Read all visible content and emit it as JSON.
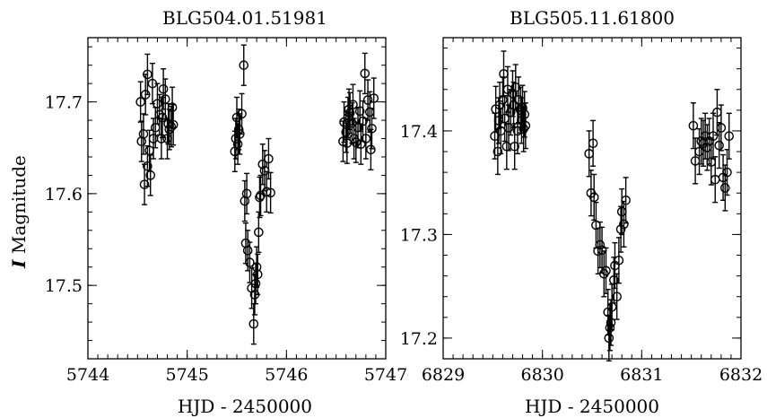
{
  "chart_data": [
    {
      "type": "scatter",
      "title": "BLG504.01.51981",
      "xlabel": "HJD - 2450000",
      "ylabel_italic": "I",
      "ylabel": "Magnitude",
      "xlim": [
        5744,
        5747
      ],
      "ylim": [
        17.77,
        17.42
      ],
      "y_inverted": true,
      "xticks": [
        5744,
        5745,
        5746,
        5747
      ],
      "yticks": [
        17.5,
        17.6,
        17.7
      ],
      "xtick_labels": [
        "5744",
        "5745",
        "5746",
        "5747"
      ],
      "ytick_labels": [
        "17.5",
        "17.6",
        "17.7"
      ],
      "error_bar": 0.022,
      "points": [
        [
          5744.53,
          17.7
        ],
        [
          5744.54,
          17.657
        ],
        [
          5744.56,
          17.665
        ],
        [
          5744.57,
          17.61
        ],
        [
          5744.58,
          17.708
        ],
        [
          5744.6,
          17.63
        ],
        [
          5744.6,
          17.73
        ],
        [
          5744.62,
          17.647
        ],
        [
          5744.63,
          17.62
        ],
        [
          5744.65,
          17.72
        ],
        [
          5744.66,
          17.66
        ],
        [
          5744.68,
          17.672
        ],
        [
          5744.7,
          17.698
        ],
        [
          5744.72,
          17.686
        ],
        [
          5744.74,
          17.66
        ],
        [
          5744.75,
          17.683
        ],
        [
          5744.76,
          17.714
        ],
        [
          5744.78,
          17.703
        ],
        [
          5744.8,
          17.66
        ],
        [
          5744.81,
          17.676
        ],
        [
          5744.82,
          17.67
        ],
        [
          5744.84,
          17.673
        ],
        [
          5744.85,
          17.694
        ],
        [
          5744.86,
          17.675
        ],
        [
          5745.48,
          17.646
        ],
        [
          5745.49,
          17.66
        ],
        [
          5745.5,
          17.683
        ],
        [
          5745.51,
          17.654
        ],
        [
          5745.52,
          17.67
        ],
        [
          5745.53,
          17.665
        ],
        [
          5745.55,
          17.687
        ],
        [
          5745.57,
          17.74
        ],
        [
          5745.58,
          17.592
        ],
        [
          5745.59,
          17.546
        ],
        [
          5745.6,
          17.6
        ],
        [
          5745.61,
          17.538
        ],
        [
          5745.63,
          17.525
        ],
        [
          5745.65,
          17.497
        ],
        [
          5745.67,
          17.458
        ],
        [
          5745.68,
          17.49
        ],
        [
          5745.69,
          17.502
        ],
        [
          5745.7,
          17.52
        ],
        [
          5745.71,
          17.512
        ],
        [
          5745.72,
          17.558
        ],
        [
          5745.73,
          17.596
        ],
        [
          5745.74,
          17.598
        ],
        [
          5745.76,
          17.632
        ],
        [
          5745.78,
          17.625
        ],
        [
          5745.8,
          17.602
        ],
        [
          5745.82,
          17.638
        ],
        [
          5745.84,
          17.601
        ],
        [
          5746.57,
          17.657
        ],
        [
          5746.58,
          17.678
        ],
        [
          5746.6,
          17.667
        ],
        [
          5746.61,
          17.655
        ],
        [
          5746.62,
          17.683
        ],
        [
          5746.63,
          17.692
        ],
        [
          5746.64,
          17.688
        ],
        [
          5746.66,
          17.677
        ],
        [
          5746.67,
          17.697
        ],
        [
          5746.68,
          17.66
        ],
        [
          5746.7,
          17.656
        ],
        [
          5746.72,
          17.672
        ],
        [
          5746.74,
          17.69
        ],
        [
          5746.75,
          17.654
        ],
        [
          5746.77,
          17.679
        ],
        [
          5746.79,
          17.731
        ],
        [
          5746.8,
          17.66
        ],
        [
          5746.82,
          17.702
        ],
        [
          5746.84,
          17.689
        ],
        [
          5746.85,
          17.648
        ],
        [
          5746.86,
          17.671
        ],
        [
          5746.88,
          17.704
        ]
      ]
    },
    {
      "type": "scatter",
      "title": "BLG505.11.61800",
      "xlabel": "HJD - 2450000",
      "xlim": [
        6829,
        6832
      ],
      "ylim": [
        17.49,
        17.18
      ],
      "y_inverted": true,
      "xticks": [
        6829,
        6830,
        6831,
        6832
      ],
      "yticks": [
        17.2,
        17.3,
        17.4
      ],
      "xtick_labels": [
        "6829",
        "6830",
        "6831",
        "6832"
      ],
      "ytick_labels": [
        "17.2",
        "17.3",
        "17.4"
      ],
      "error_bar": 0.022,
      "points": [
        [
          6829.52,
          17.395
        ],
        [
          6829.53,
          17.421
        ],
        [
          6829.55,
          17.38
        ],
        [
          6829.56,
          17.41
        ],
        [
          6829.57,
          17.425
        ],
        [
          6829.58,
          17.4
        ],
        [
          6829.6,
          17.43
        ],
        [
          6829.61,
          17.455
        ],
        [
          6829.62,
          17.412
        ],
        [
          6829.64,
          17.385
        ],
        [
          6829.65,
          17.44
        ],
        [
          6829.66,
          17.403
        ],
        [
          6829.68,
          17.418
        ],
        [
          6829.7,
          17.436
        ],
        [
          6829.71,
          17.425
        ],
        [
          6829.72,
          17.385
        ],
        [
          6829.73,
          17.442
        ],
        [
          6829.75,
          17.4
        ],
        [
          6829.76,
          17.43
        ],
        [
          6829.78,
          17.42
        ],
        [
          6829.79,
          17.41
        ],
        [
          6829.8,
          17.422
        ],
        [
          6829.81,
          17.402
        ],
        [
          6829.82,
          17.416
        ],
        [
          6829.83,
          17.405
        ],
        [
          6830.47,
          17.378
        ],
        [
          6830.49,
          17.34
        ],
        [
          6830.51,
          17.388
        ],
        [
          6830.52,
          17.336
        ],
        [
          6830.54,
          17.309
        ],
        [
          6830.56,
          17.284
        ],
        [
          6830.58,
          17.29
        ],
        [
          6830.6,
          17.285
        ],
        [
          6830.62,
          17.262
        ],
        [
          6830.64,
          17.265
        ],
        [
          6830.66,
          17.225
        ],
        [
          6830.67,
          17.2
        ],
        [
          6830.68,
          17.21
        ],
        [
          6830.69,
          17.215
        ],
        [
          6830.7,
          17.23
        ],
        [
          6830.72,
          17.256
        ],
        [
          6830.73,
          17.27
        ],
        [
          6830.75,
          17.24
        ],
        [
          6830.77,
          17.275
        ],
        [
          6830.79,
          17.305
        ],
        [
          6830.8,
          17.322
        ],
        [
          6830.82,
          17.31
        ],
        [
          6830.84,
          17.333
        ],
        [
          6831.52,
          17.405
        ],
        [
          6831.54,
          17.371
        ],
        [
          6831.58,
          17.38
        ],
        [
          6831.6,
          17.39
        ],
        [
          6831.62,
          17.388
        ],
        [
          6831.64,
          17.395
        ],
        [
          6831.66,
          17.384
        ],
        [
          6831.68,
          17.39
        ],
        [
          6831.7,
          17.37
        ],
        [
          6831.72,
          17.395
        ],
        [
          6831.74,
          17.353
        ],
        [
          6831.76,
          17.418
        ],
        [
          6831.78,
          17.386
        ],
        [
          6831.8,
          17.403
        ],
        [
          6831.82,
          17.355
        ],
        [
          6831.84,
          17.345
        ],
        [
          6831.86,
          17.36
        ],
        [
          6831.88,
          17.395
        ]
      ]
    }
  ]
}
